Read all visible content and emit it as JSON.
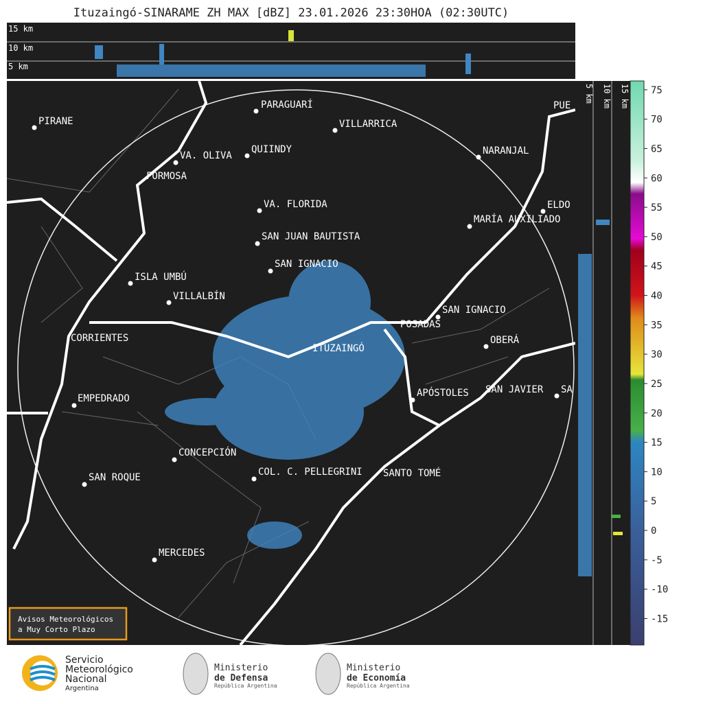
{
  "title": "Ituzaingó-SINARAME ZH MAX [dBZ] 23.01.2026 23:30HOA (02:30UTC)",
  "top_panel": {
    "labels": [
      "15 km",
      "10 km",
      "5 km"
    ]
  },
  "side_panel": {
    "labels": [
      "5 km",
      "10 km",
      "15 km"
    ]
  },
  "cities": [
    "PIRANE",
    "PARAGUARÍ",
    "VILLARRICA",
    "QUIINDY",
    "VA. OLIVA",
    "FORMOSA",
    "NARANJAL",
    "PUE",
    "ELDO",
    "MARÍA AUXILIADO",
    "VA. FLORIDA",
    "SAN JUAN BAUTISTA",
    "SAN IGNACIO",
    "ISLA UMBÚ",
    "VILLALBÍN",
    "SAN IGNACIO",
    "POSADAS",
    "OBERÁ",
    "CORRIENTES",
    "ITUZAINGÓ",
    "EMPEDRADO",
    "APÓSTOLES",
    "SAN JAVIER",
    "SA",
    "CONCEPCIÓN",
    "SAN ROQUE",
    "COL. C. PELLEGRINI",
    "SANTO TOMÉ",
    "MERCEDES"
  ],
  "colorbar": {
    "range": [
      -19.5,
      76.5
    ],
    "ticks": [
      75,
      70,
      65,
      60,
      55,
      50,
      45,
      40,
      35,
      30,
      25,
      20,
      15,
      10,
      5,
      0,
      -5,
      -10,
      -15
    ]
  },
  "warning_box": [
    "Avisos Meteorológicos",
    "a Muy Corto Plazo"
  ],
  "footer": {
    "smn": [
      "Servicio",
      "Meteorológico",
      "Nacional",
      "Argentina"
    ],
    "defensa": [
      "Ministerio",
      "de Defensa",
      "República Argentina"
    ],
    "economia": [
      "Ministerio",
      "de Economía",
      "República Argentina"
    ]
  }
}
